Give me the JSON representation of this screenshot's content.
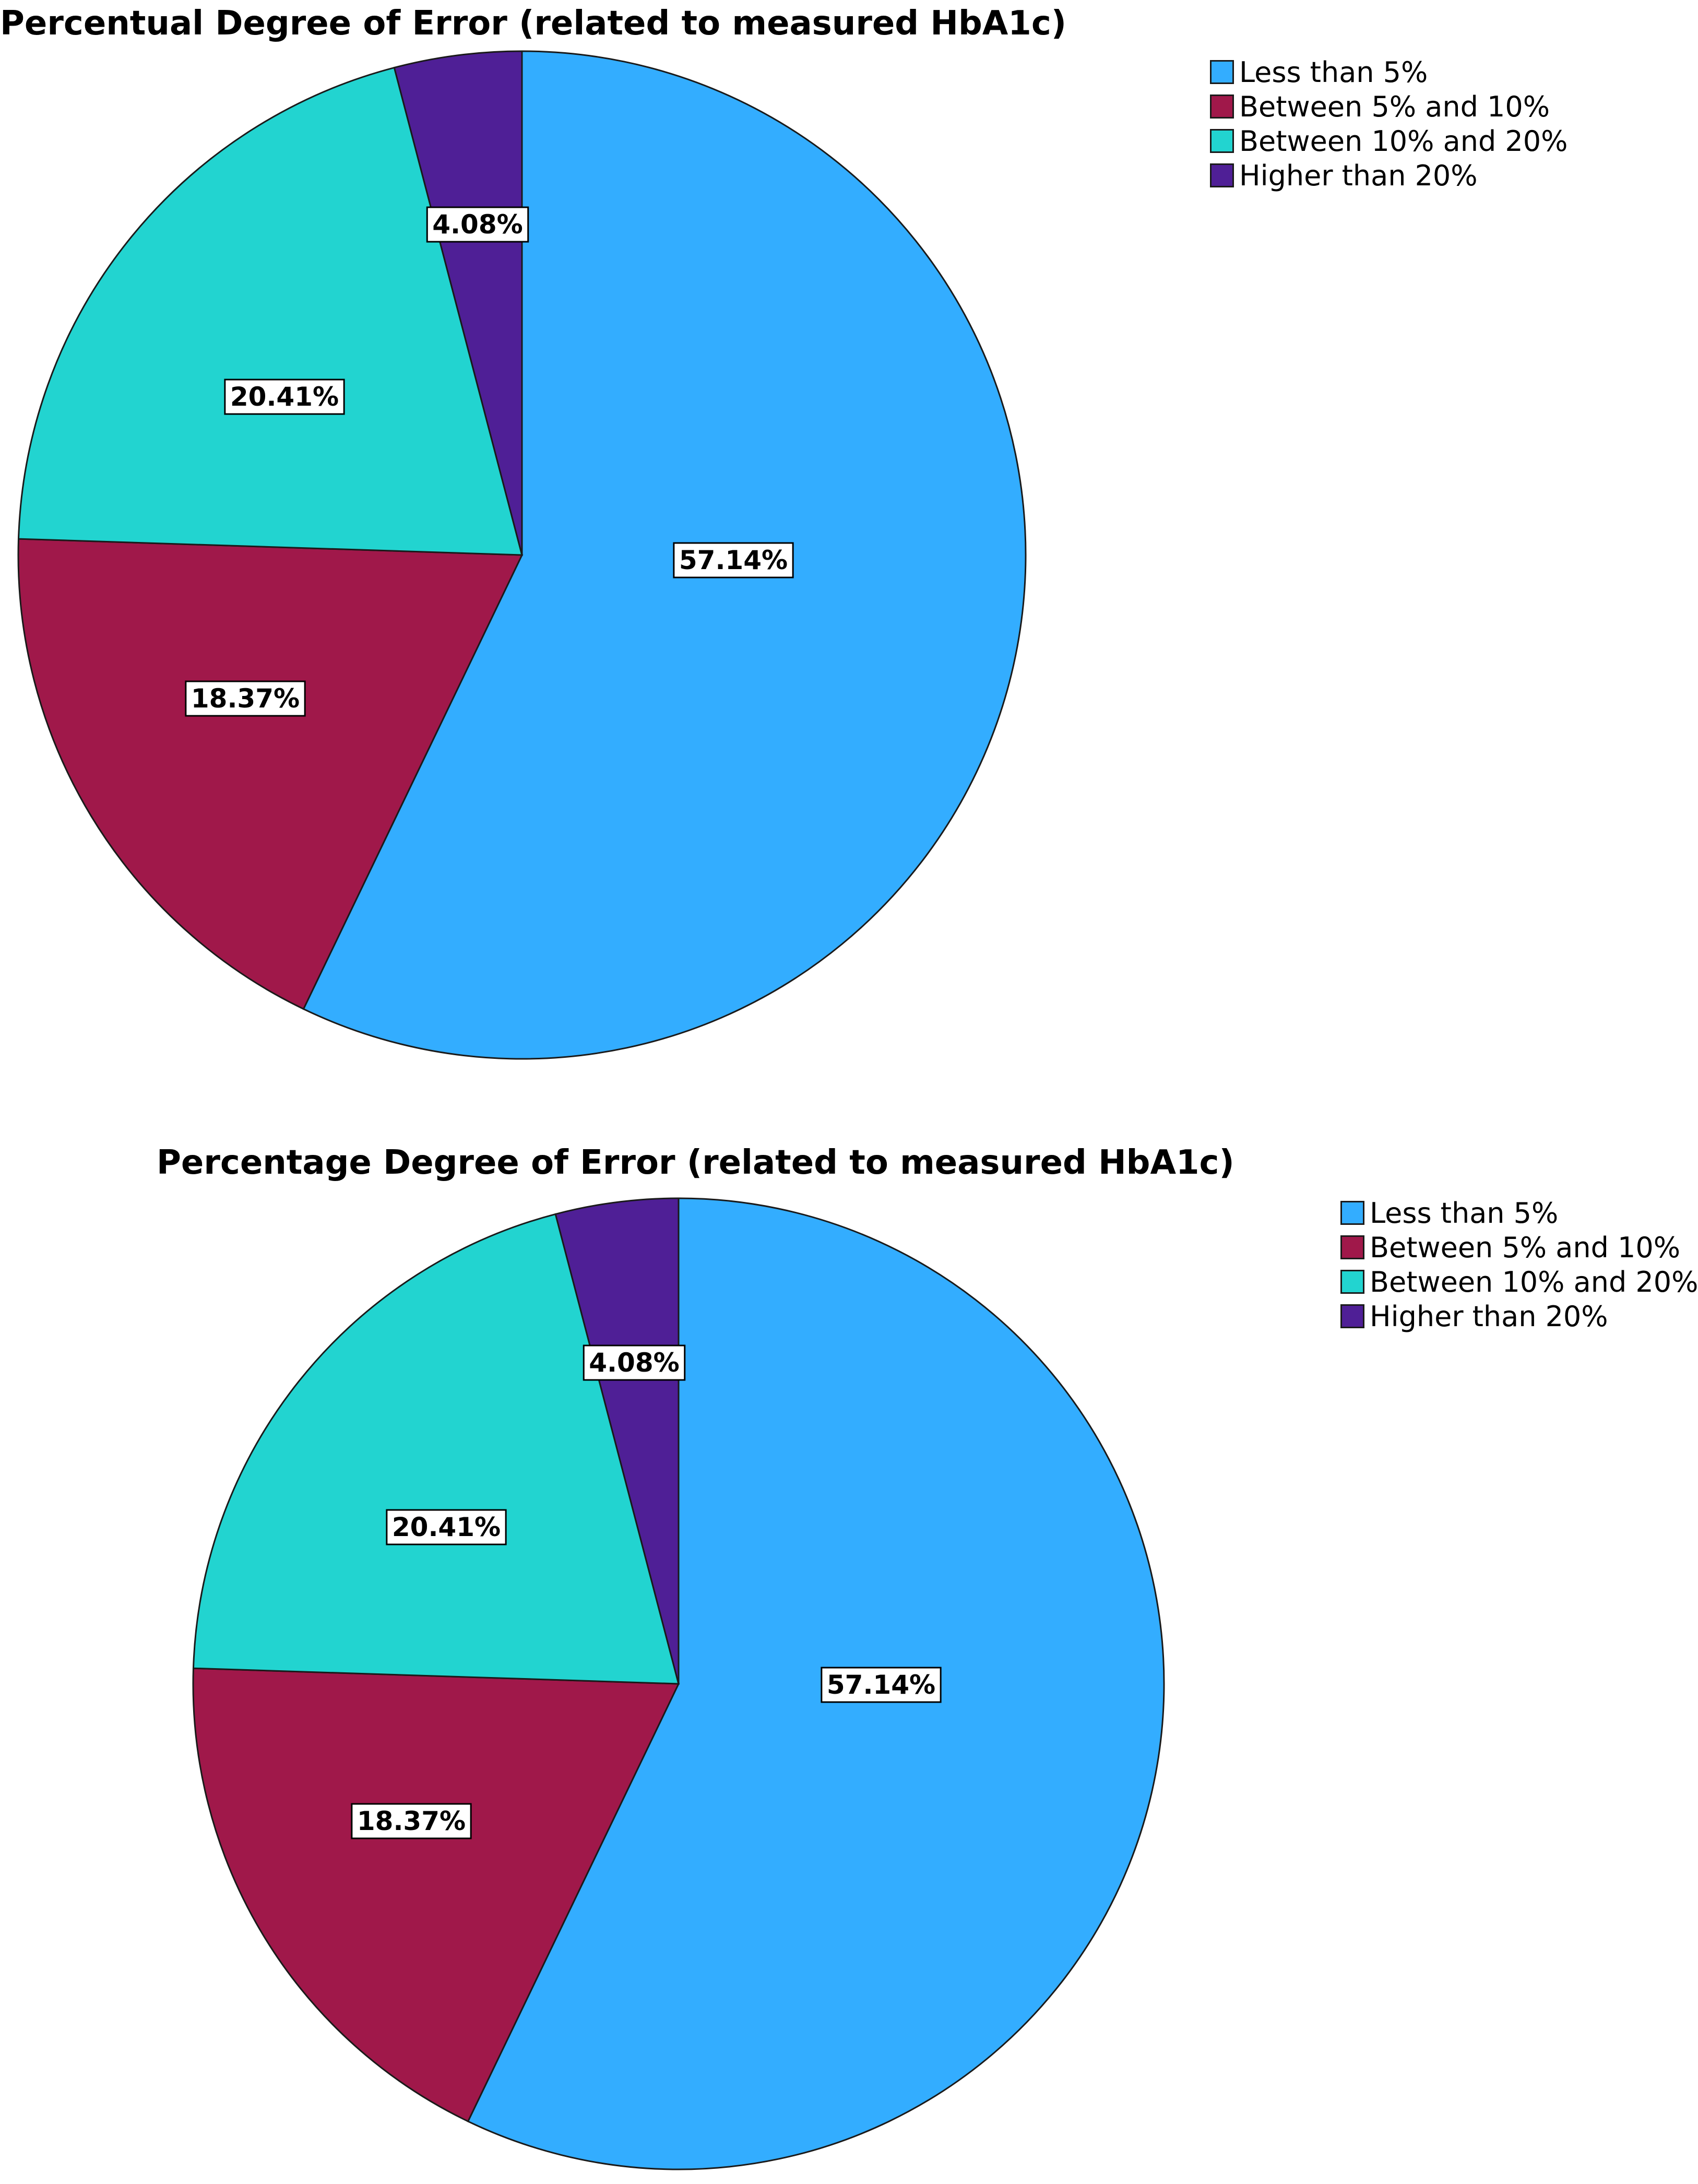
{
  "chart_data": [
    {
      "type": "pie",
      "title": "Percentual Degree of Error (related to measured HbA1c)",
      "categories": [
        "Less than 5%",
        "Between 5% and 10%",
        "Between 10% and 20%",
        "Higher than 20%"
      ],
      "values": [
        57.14,
        18.37,
        20.41,
        4.08
      ],
      "labels": [
        "57.14%",
        "18.37%",
        "20.41%",
        "4.08%"
      ],
      "colors": [
        "#33adff",
        "#a0184a",
        "#22d4d0",
        "#4f1f96"
      ],
      "legend": "top-right"
    },
    {
      "type": "pie",
      "title": "Percentage Degree of Error (related to measured HbA1c)",
      "categories": [
        "Less than 5%",
        "Between 5% and 10%",
        "Between 10% and 20%",
        "Higher than 20%"
      ],
      "values": [
        57.14,
        18.37,
        20.41,
        4.08
      ],
      "labels": [
        "57.14%",
        "18.37%",
        "20.41%",
        "4.08%"
      ],
      "colors": [
        "#33adff",
        "#a0184a",
        "#22d4d0",
        "#4f1f96"
      ],
      "legend": "top-right"
    }
  ]
}
